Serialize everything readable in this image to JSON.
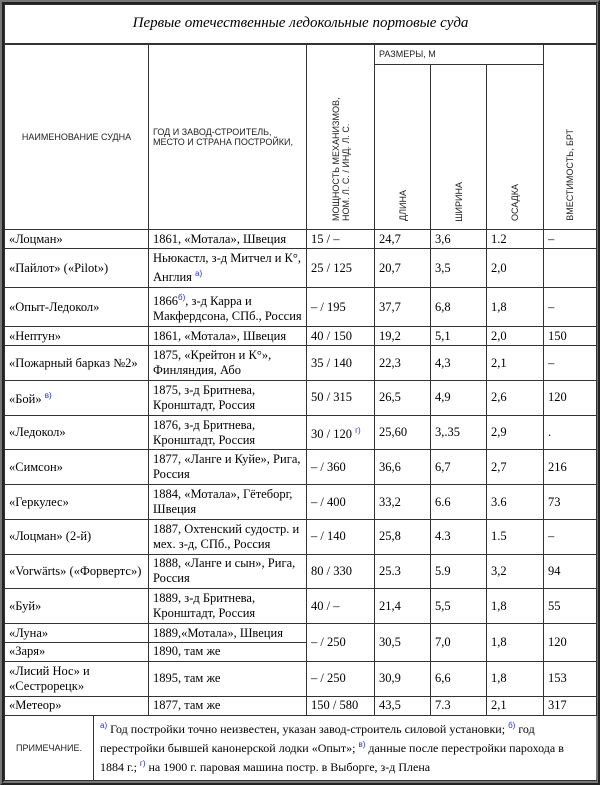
{
  "title": "Первые отечественные ледокольные портовые суда",
  "headers": {
    "name": "НАИМЕНОВАНИЕ СУДНА",
    "builder": "ГОД И ЗАВОД-СТРОИТЕЛЬ, МЕСТО И СТРАНА ПОСТРОЙКИ,",
    "power": "МОЩНОСТЬ МЕХАНИЗМОВ, НОМ. Л. С. / ИНД. Л. С.",
    "dims": "РАЗМЕРЫ, М",
    "length": "ДЛИНА",
    "width": "ШИРИНА",
    "draft": "ОСАДКА",
    "capacity": "ВМЕСТИМОСТЬ, БРТ"
  },
  "rows": [
    {
      "name": "«Лоцман»",
      "builder": "1861, «Мотала», Швеция",
      "power": "15 / –",
      "length": "24,7",
      "width": "3,6",
      "draft": "1.2",
      "capacity": "–"
    },
    {
      "name": "«Пайлот» («Pilot»)",
      "builder": "Ньюкастл, з-д Митчел и К°, Англия",
      "builder_sup": "а)",
      "power": "25 / 125",
      "length": "20,7",
      "width": "3,5",
      "draft": "2,0",
      "capacity": ""
    },
    {
      "name": "«Опыт-Ледокол»",
      "builder_pre": "1866",
      "builder_sup": "б)",
      "builder": ", з-д Карра и Макфердсона, СПб., Россия",
      "power": "– / 195",
      "length": "37,7",
      "width": "6,8",
      "draft": "1,8",
      "capacity": "–"
    },
    {
      "name": "«Нептун»",
      "builder": "1861, «Мотала», Швеция",
      "power": "40 / 150",
      "length": "19,2",
      "width": "5,1",
      "draft": "2,0",
      "capacity": "150"
    },
    {
      "name": "«Пожарный барказ №2»",
      "builder": "1875, «Крейтон и К°», Финляндия, Або",
      "power": "35 / 140",
      "length": "22,3",
      "width": "4,3",
      "draft": "2,1",
      "capacity": "–"
    },
    {
      "name": "«Бой»",
      "name_sup": "в)",
      "builder": "1875, з-д Бритнева, Кронштадт, Россия",
      "power": "50 / 315",
      "length": "26,5",
      "width": "4,9",
      "draft": "2,6",
      "capacity": "120"
    },
    {
      "name": "«Ледокол»",
      "builder": "1876, з-д Бритнева, Кронштадт, Россия",
      "power": "30 / 120",
      "power_sup": "г)",
      "length": "25,60",
      "width": "3,.35",
      "draft": "2,9",
      "capacity": "."
    },
    {
      "name": "«Симсон»",
      "builder": "1877, «Ланге и Куйе», Рига, Россия",
      "power": "– / 360",
      "length": "36,6",
      "width": "6,7",
      "draft": "2,7",
      "capacity": "216"
    },
    {
      "name": "«Геркулес»",
      "builder": "1884, «Мотала», Гётеборг, Швеция",
      "power": "– / 400",
      "length": "33,2",
      "width": "6.6",
      "draft": "3.6",
      "capacity": "73"
    },
    {
      "name": "«Лоцман» (2-й)",
      "builder": "1887, Охтенский судостр. и мех. з-д, СПб., Россия",
      "power": "– / 140",
      "length": "25,8",
      "width": "4.3",
      "draft": "1.5",
      "capacity": "–"
    },
    {
      "name": "«Vorwärts» («Форвертс»)",
      "builder": "1888, «Ланге и сын», Рига, Россия",
      "power": "80 / 330",
      "length": "25.3",
      "width": "5.9",
      "draft": "3,2",
      "capacity": "94"
    },
    {
      "name": "«Буй»",
      "builder": "1889, з-д Бритнева, Кронштадт, Россия",
      "power": "40 / –",
      "length": "21,4",
      "width": "5,5",
      "draft": "1,8",
      "capacity": "55"
    },
    {
      "name": "«Луна»",
      "builder": "1889,«Мотала», Швеция",
      "power": "– / 250",
      "length": "30,5",
      "width": "7,0",
      "draft": "1,8",
      "capacity": "120"
    },
    {
      "name": "«Заря»",
      "builder": "1890, там же"
    },
    {
      "name": "«Лисий Нос» и «Сестрорецк»",
      "builder": "1895, там же",
      "power": "– / 250",
      "length": "30,9",
      "width": "6,6",
      "draft": "1,8",
      "capacity": "153"
    },
    {
      "name": "«Метеор»",
      "builder": "1877, там же",
      "power": "150 / 580",
      "length": "43,5",
      "width": "7.3",
      "draft": "2,1",
      "capacity": "317"
    }
  ],
  "note": {
    "label": "ПРИМЕЧАНИЕ.",
    "a_mark": "а)",
    "a": " Год постройки точно неизвестен, указан завод-строитель силовой установки;",
    "b_mark": "б)",
    "b": " год перестройки бывшей канонерской лодки «Опыт»;",
    "v_mark": "в)",
    "v": " данные после перестройки парохода в 1884 г.;",
    "g_mark": "г)",
    "g": " на 1900 г. паровая машина постр. в Выборге, з-д Плена"
  }
}
